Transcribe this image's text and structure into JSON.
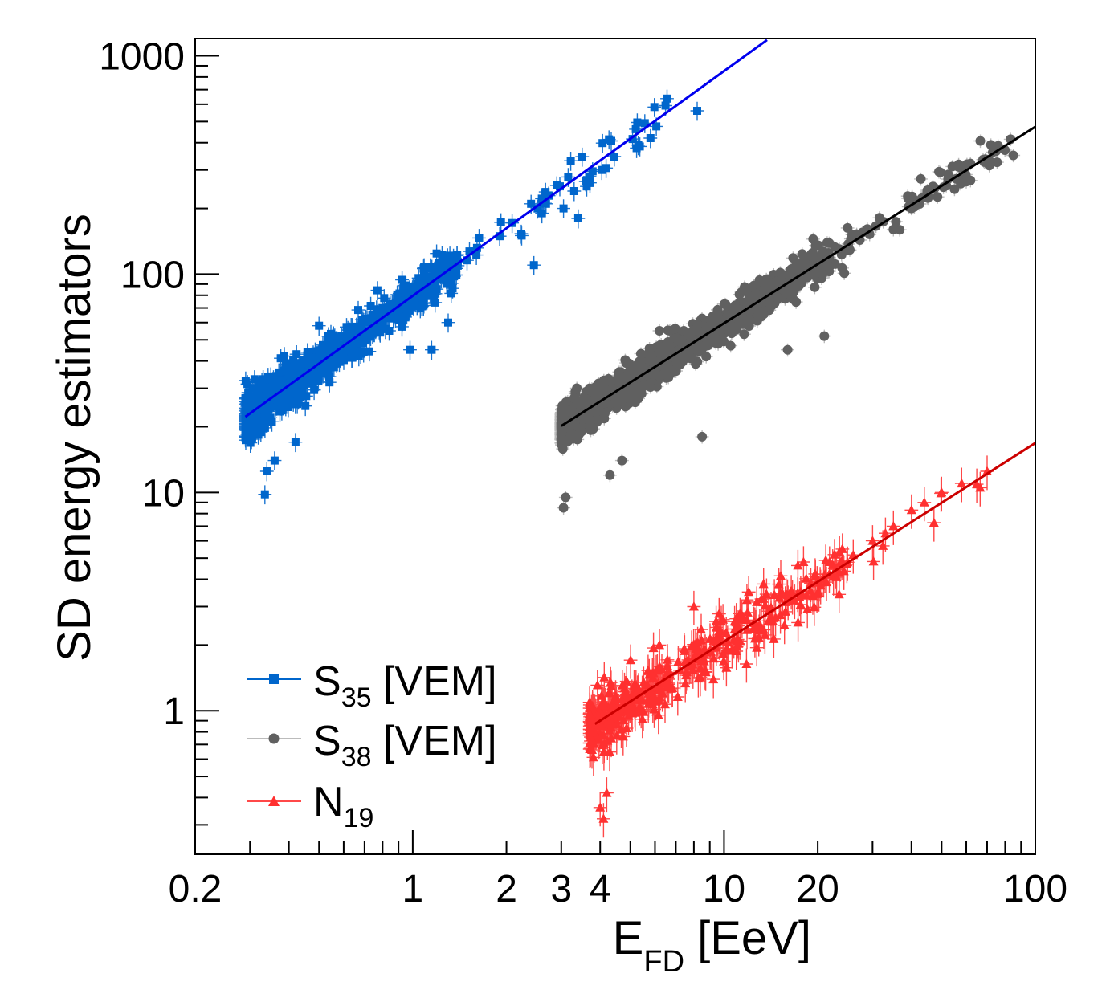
{
  "chart_data": {
    "type": "scatter",
    "title": "",
    "xlabel": {
      "main": "E",
      "sub": "FD",
      "unit": " [EeV]"
    },
    "ylabel": "SD energy estimators",
    "xscale": "log",
    "yscale": "log",
    "xlim": [
      0.2,
      100
    ],
    "ylim": [
      0.22,
      1200
    ],
    "x_tick_labels": [
      {
        "value": 0.2,
        "label": "0.2"
      },
      {
        "value": 1,
        "label": "1"
      },
      {
        "value": 2,
        "label": "2"
      },
      {
        "value": 3,
        "label": "3"
      },
      {
        "value": 4,
        "label": "4"
      },
      {
        "value": 10,
        "label": "10"
      },
      {
        "value": 20,
        "label": "20"
      },
      {
        "value": 100,
        "label": "100"
      }
    ],
    "y_tick_labels": [
      {
        "value": 1,
        "label": "1"
      },
      {
        "value": 10,
        "label": "10"
      },
      {
        "value": 100,
        "label": "100"
      },
      {
        "value": 1000,
        "label": "1000"
      }
    ],
    "legend_position": "bottom-left",
    "series": [
      {
        "name": "S35 [VEM]",
        "legend": {
          "main": "S",
          "sub": "35",
          "unit": " [VEM]"
        },
        "marker": "square",
        "color": "#0066cc",
        "errcolor": "#1a75d1",
        "line_color": "#0000ee",
        "n_points": 900,
        "seed": 11,
        "x_range": [
          0.29,
          8.2
        ],
        "x_bulk_max": 1.4,
        "fit": {
          "A": 79.5,
          "B": 1.03,
          "x0": 0.29,
          "x1": 18
        },
        "scatter_sigma": 0.11,
        "err_x_frac": 0.05,
        "err_y_frac": 0.1,
        "data_points": [
          {
            "x": 8.2,
            "y": 560
          },
          {
            "x": 5.8,
            "y": 420
          },
          {
            "x": 5.3,
            "y": 390
          },
          {
            "x": 4.05,
            "y": 300
          },
          {
            "x": 3.7,
            "y": 280
          },
          {
            "x": 3.3,
            "y": 240
          },
          {
            "x": 3.05,
            "y": 200
          },
          {
            "x": 3.4,
            "y": 180
          },
          {
            "x": 2.6,
            "y": 190
          },
          {
            "x": 2.4,
            "y": 210
          },
          {
            "x": 2.45,
            "y": 110
          },
          {
            "x": 1.3,
            "y": 60
          },
          {
            "x": 1.15,
            "y": 45
          },
          {
            "x": 0.98,
            "y": 45
          },
          {
            "x": 0.36,
            "y": 14
          },
          {
            "x": 0.34,
            "y": 12.5
          },
          {
            "x": 0.335,
            "y": 9.8
          },
          {
            "x": 0.42,
            "y": 17
          },
          {
            "x": 0.5,
            "y": 58
          }
        ]
      },
      {
        "name": "S38 [VEM]",
        "legend": {
          "main": "S",
          "sub": "38",
          "unit": " [VEM]"
        },
        "marker": "circle",
        "color": "#606060",
        "errcolor": "#bbbbbb",
        "line_color": "#000000",
        "n_points": 2000,
        "seed": 23,
        "x_range": [
          3.0,
          85
        ],
        "x_bulk_max": 22,
        "fit": {
          "A": 7.5,
          "B": 0.9,
          "x0": 3.0,
          "x1": 100
        },
        "scatter_sigma": 0.09,
        "err_x_frac": 0.05,
        "err_y_frac": 0.07,
        "data_points": [
          {
            "x": 85,
            "y": 350
          },
          {
            "x": 70,
            "y": 330
          },
          {
            "x": 60,
            "y": 265
          },
          {
            "x": 55,
            "y": 245
          },
          {
            "x": 45,
            "y": 225
          },
          {
            "x": 40,
            "y": 200
          },
          {
            "x": 35,
            "y": 160
          },
          {
            "x": 16,
            "y": 45
          },
          {
            "x": 6.7,
            "y": 55
          },
          {
            "x": 6.2,
            "y": 55
          },
          {
            "x": 3.3,
            "y": 27
          },
          {
            "x": 3.05,
            "y": 8.5
          },
          {
            "x": 3.1,
            "y": 9.5
          },
          {
            "x": 4.3,
            "y": 12
          },
          {
            "x": 4.7,
            "y": 14
          },
          {
            "x": 8.5,
            "y": 18
          },
          {
            "x": 3.7,
            "y": 30
          },
          {
            "x": 21,
            "y": 52
          }
        ]
      },
      {
        "name": "N19",
        "legend": {
          "main": "N",
          "sub": "19",
          "unit": ""
        },
        "marker": "triangle",
        "color": "#ff3030",
        "errcolor": "#ff4848",
        "line_color": "#cc0000",
        "n_points": 420,
        "seed": 37,
        "x_range": [
          3.7,
          70
        ],
        "x_bulk_max": 25,
        "fit": {
          "A": 0.255,
          "B": 0.91,
          "x0": 3.85,
          "x1": 100
        },
        "scatter_sigma": 0.14,
        "err_x_frac": 0.05,
        "err_y_frac": 0.18,
        "data_points": [
          {
            "x": 70,
            "y": 12.5
          },
          {
            "x": 58,
            "y": 11.0
          },
          {
            "x": 50,
            "y": 10.0
          },
          {
            "x": 44,
            "y": 9.0
          },
          {
            "x": 40,
            "y": 8.3
          },
          {
            "x": 35,
            "y": 7.0
          },
          {
            "x": 33,
            "y": 6.5
          },
          {
            "x": 30,
            "y": 6.0
          },
          {
            "x": 24,
            "y": 5.5
          },
          {
            "x": 18,
            "y": 4.8
          },
          {
            "x": 15,
            "y": 3.8
          },
          {
            "x": 4.0,
            "y": 0.36
          },
          {
            "x": 4.1,
            "y": 0.32
          },
          {
            "x": 4.2,
            "y": 0.42
          },
          {
            "x": 6.2,
            "y": 2.0
          },
          {
            "x": 8.0,
            "y": 3.0
          },
          {
            "x": 12,
            "y": 3.5
          }
        ]
      }
    ]
  }
}
